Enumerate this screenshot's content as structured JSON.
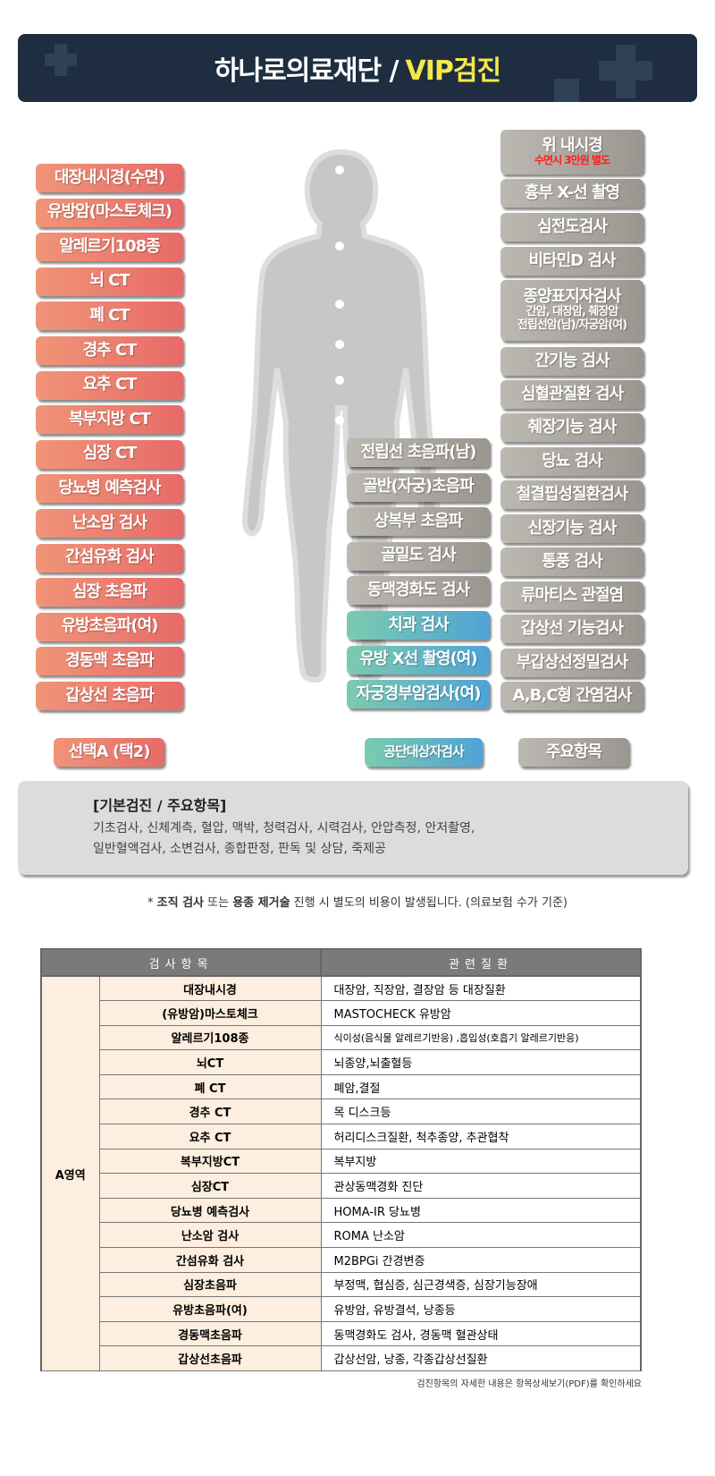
{
  "header": {
    "title": "하나로의료재단 /",
    "highlight": "VIP검진"
  },
  "left_items": [
    "대장내시경(수면)",
    "유방암(마스토체크)",
    "알레르기108종",
    "뇌 CT",
    "폐 CT",
    "경추 CT",
    "요추 CT",
    "복부지방 CT",
    "심장 CT",
    "당뇨병 예측검사",
    "난소암 검사",
    "간섬유화 검사",
    "심장 초음파",
    "유방초음파(여)",
    "경동맥 초음파",
    "갑상선 초음파"
  ],
  "middle_gray": [
    "전립선 초음파(남)",
    "골반(자궁)초음파",
    "상복부 초음파",
    "골밀도 검사",
    "동맥경화도 검사"
  ],
  "middle_teal": [
    "치과 검사",
    "유방 X선 촬영(여)",
    "자궁경부암검사(여)"
  ],
  "right_items": [
    {
      "label": "위 내시경",
      "note": "수면시 3만원 별도"
    },
    {
      "label": "흉부 X-선 촬영"
    },
    {
      "label": "심전도검사"
    },
    {
      "label": "비타민D 검사"
    },
    {
      "label": "종양표지자검사",
      "sub1": "간암, 대장암, 췌장암",
      "sub2": "전립선암(남)/자궁암(여)"
    },
    {
      "label": "간기능 검사"
    },
    {
      "label": "심혈관질환 검사"
    },
    {
      "label": "췌장기능 검사"
    },
    {
      "label": "당뇨 검사"
    },
    {
      "label": "철결핍성질환검사"
    },
    {
      "label": "신장기능 검사"
    },
    {
      "label": "통풍 검사"
    },
    {
      "label": "류마티스 관절염"
    },
    {
      "label": "갑상선 기능검사"
    },
    {
      "label": "부갑상선정밀검사"
    },
    {
      "label": "A,B,C형 간염검사"
    }
  ],
  "legend": {
    "select": "선택A (택2)",
    "public": "공단대상자검사",
    "main": "주요항목"
  },
  "basic": {
    "title": "[기본검진 / 주요항목]",
    "line1": "기초검사, 신체계측, 혈압, 맥박, 청력검사, 시력검사, 안압측정, 안저촬영,",
    "line2": "일반혈액검사, 소변검사, 종합판정, 판독 및 상담, 죽제공"
  },
  "note": {
    "star": "* ",
    "b1": "조직 검사",
    "t1": " 또는 ",
    "b2": "용종 제거술",
    "t2": " 진행 시 별도의 비용이 발생됩니다. (의료보험 수가 기준)"
  },
  "table": {
    "headers": [
      "검사항목",
      "관련질환"
    ],
    "area": "A영역",
    "rows": [
      [
        "대장내시경",
        "대장암, 직장암, 결장암 등 대장질환"
      ],
      [
        "(유방암)마스토체크",
        "MASTOCHECK 유방암"
      ],
      [
        "알레르기108종",
        "식이성(음식물 알레르기반응) ,흡입성(호흡기 알레르기반응)"
      ],
      [
        "뇌CT",
        "뇌종양,뇌출혈등"
      ],
      [
        "폐 CT",
        "폐암,결절"
      ],
      [
        "경추 CT",
        "목 디스크등"
      ],
      [
        "요추 CT",
        "허리디스크질환, 척추종양, 추관협착"
      ],
      [
        "복부지방CT",
        "복부지방"
      ],
      [
        "심장CT",
        "관상동맥경화 진단"
      ],
      [
        "당뇨병 예측검사",
        "HOMA-IR 당뇨병"
      ],
      [
        "난소암 검사",
        "ROMA 난소암"
      ],
      [
        "간섬유화 검사",
        "M2BPGi 간경변증"
      ],
      [
        "심장초음파",
        "부정맥, 협심증, 심근경색증, 심장기능장애"
      ],
      [
        "유방초음파(여)",
        "유방암, 유방결석, 낭종등"
      ],
      [
        "경동맥초음파",
        "동맥경화도 검사, 경동맥 혈관상태"
      ],
      [
        "갑상선초음파",
        "갑상선암, 낭종, 각종갑상선질환"
      ]
    ]
  },
  "footer": "검진항목의 자세한 내용은 항목상세보기(PDF)를 확인하세요"
}
